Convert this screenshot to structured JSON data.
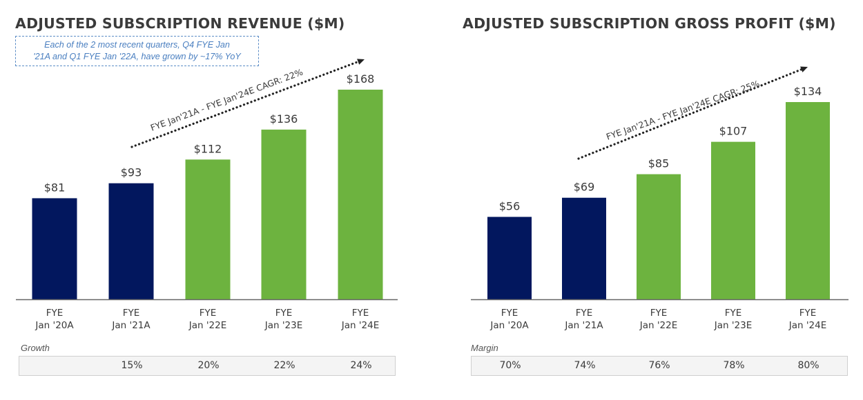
{
  "colors": {
    "actual": "#02175e",
    "estimate": "#6db33f",
    "axis": "#666666",
    "callout": "#4a7fc0"
  },
  "chart_data": [
    {
      "type": "bar",
      "title": "ADJUSTED SUBSCRIPTION REVENUE ($M)",
      "categories": [
        [
          "FYE",
          "Jan '20A"
        ],
        [
          "FYE",
          "Jan '21A"
        ],
        [
          "FYE",
          "Jan '22E"
        ],
        [
          "FYE",
          "Jan '23E"
        ],
        [
          "FYE",
          "Jan '24E"
        ]
      ],
      "values": [
        81,
        93,
        112,
        136,
        168
      ],
      "data_labels": [
        "$81",
        "$93",
        "$112",
        "$136",
        "$168"
      ],
      "bar_kind": [
        "actual",
        "actual",
        "estimate",
        "estimate",
        "estimate"
      ],
      "ylim": [
        0,
        168
      ],
      "grid": false,
      "xlabel": "",
      "ylabel": "",
      "annotation": "FYE Jan'21A - FYE Jan'24E CAGR: 22%",
      "callout": "Each of the 2 most recent quarters, Q4 FYE Jan '21A and Q1 FYE Jan '22A, have grown by ~17% YoY",
      "callout_lines": [
        "Each of the 2 most recent quarters, Q4 FYE Jan",
        "'21A and Q1 FYE Jan '22A, have grown by ~17% YoY"
      ],
      "row_caption": "Growth",
      "row_values": [
        "",
        "15%",
        "20%",
        "22%",
        "24%"
      ]
    },
    {
      "type": "bar",
      "title": "ADJUSTED SUBSCRIPTION GROSS PROFIT ($M)",
      "categories": [
        [
          "FYE",
          "Jan '20A"
        ],
        [
          "FYE",
          "Jan '21A"
        ],
        [
          "FYE",
          "Jan '22E"
        ],
        [
          "FYE",
          "Jan '23E"
        ],
        [
          "FYE",
          "Jan '24E"
        ]
      ],
      "values": [
        56,
        69,
        85,
        107,
        134
      ],
      "data_labels": [
        "$56",
        "$69",
        "$85",
        "$107",
        "$134"
      ],
      "bar_kind": [
        "actual",
        "actual",
        "estimate",
        "estimate",
        "estimate"
      ],
      "ylim": [
        0,
        134
      ],
      "grid": false,
      "xlabel": "",
      "ylabel": "",
      "annotation": "FYE Jan'21A - FYE Jan'24E CAGR: 25%",
      "row_caption": "Margin",
      "row_values": [
        "70%",
        "74%",
        "76%",
        "78%",
        "80%"
      ]
    }
  ]
}
